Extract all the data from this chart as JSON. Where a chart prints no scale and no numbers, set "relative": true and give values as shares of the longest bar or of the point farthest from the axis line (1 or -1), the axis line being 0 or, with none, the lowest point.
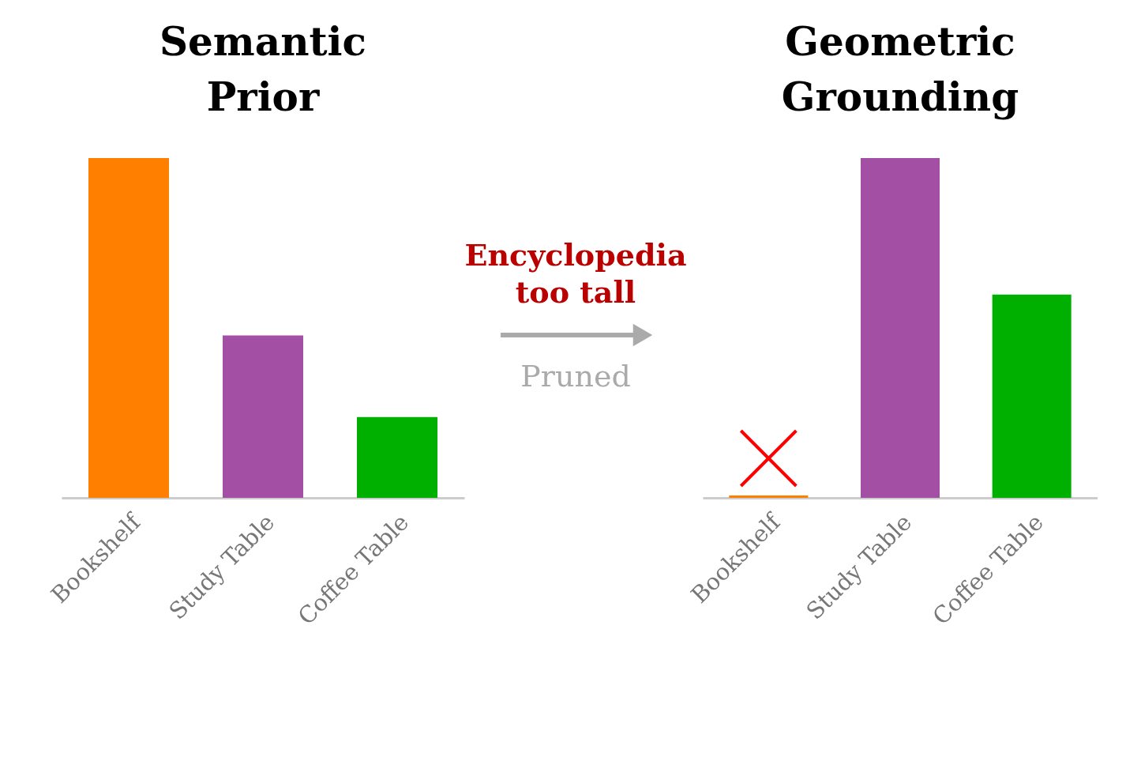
{
  "chart_data": [
    {
      "type": "bar",
      "title": "Semantic Prior",
      "relative": true,
      "categories": [
        "Bookshelf",
        "Study Table",
        "Coffee Table"
      ],
      "values": [
        1,
        0.478,
        0.238
      ],
      "colors": [
        "#ff8000",
        "#a34fa3",
        "#00b000"
      ]
    },
    {
      "type": "other",
      "annotations": [
        "Encyclopedia too tall",
        "Pruned"
      ]
    },
    {
      "type": "bar",
      "title": "Geometric Grounding",
      "relative": true,
      "categories": [
        "Bookshelf",
        "Study Table",
        "Coffee Table"
      ],
      "values": [
        0.007,
        1,
        0.598
      ],
      "colors": [
        "#ff8000",
        "#a34fa3",
        "#00b000"
      ]
    }
  ]
}
